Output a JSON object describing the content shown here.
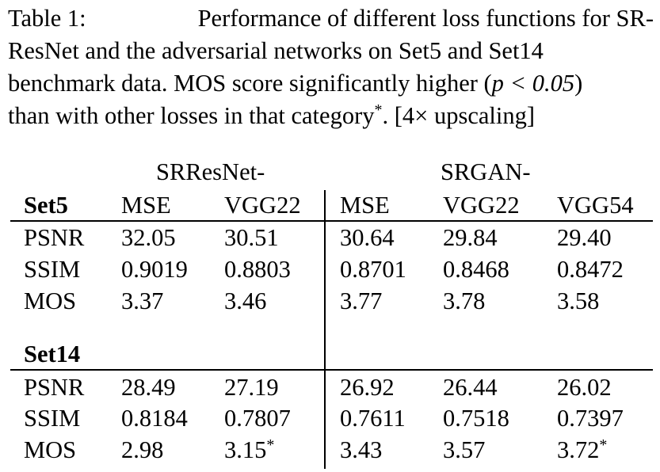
{
  "caption": {
    "label": "Table 1:",
    "line1_text": "Performance of different loss functions for SR-",
    "line2_text": "ResNet and the adversarial networks on Set5 and Set14",
    "line3_text_a": "benchmark data. MOS score significantly higher (",
    "line3_math": "p < 0.05",
    "line3_text_b": ")",
    "line4_text": "than with other losses in that category",
    "line4_star": "*",
    "line4_tail": ". [4× upscaling]"
  },
  "table": {
    "group_headers": [
      "SRResNet-",
      "SRGAN-"
    ],
    "column_headers": [
      "MSE",
      "VGG22",
      "MSE",
      "VGG22",
      "VGG54"
    ],
    "sections": [
      {
        "name": "Set5",
        "rows": [
          {
            "metric": "PSNR",
            "values": [
              "32.05",
              "30.51",
              "30.64",
              "29.84",
              "29.40"
            ],
            "stars": [
              "",
              "",
              "",
              "",
              ""
            ]
          },
          {
            "metric": "SSIM",
            "values": [
              "0.9019",
              "0.8803",
              "0.8701",
              "0.8468",
              "0.8472"
            ],
            "stars": [
              "",
              "",
              "",
              "",
              ""
            ]
          },
          {
            "metric": "MOS",
            "values": [
              "3.37",
              "3.46",
              "3.77",
              "3.78",
              "3.58"
            ],
            "stars": [
              "",
              "",
              "",
              "",
              ""
            ]
          }
        ]
      },
      {
        "name": "Set14",
        "rows": [
          {
            "metric": "PSNR",
            "values": [
              "28.49",
              "27.19",
              "26.92",
              "26.44",
              "26.02"
            ],
            "stars": [
              "",
              "",
              "",
              "",
              ""
            ]
          },
          {
            "metric": "SSIM",
            "values": [
              "0.8184",
              "0.7807",
              "0.7611",
              "0.7518",
              "0.7397"
            ],
            "stars": [
              "",
              "",
              "",
              "",
              ""
            ]
          },
          {
            "metric": "MOS",
            "values": [
              "2.98",
              "3.15",
              "3.43",
              "3.57",
              "3.72"
            ],
            "stars": [
              "",
              "*",
              "",
              "",
              "*"
            ]
          }
        ]
      }
    ]
  }
}
